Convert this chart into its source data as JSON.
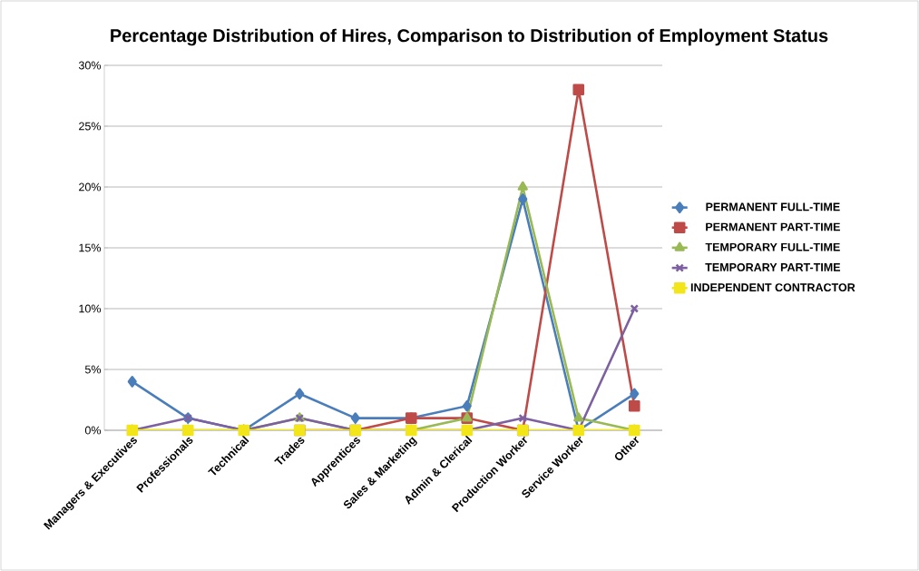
{
  "chart_data": {
    "type": "line",
    "title": "Percentage Distribution of Hires, Comparison to Distribution of Employment Status",
    "categories": [
      "Managers & Executives",
      "Professionals",
      "Technical",
      "Trades",
      "Apprentices",
      "Sales & Marketing",
      "Admin & Clerical",
      "Production Worker",
      "Service Worker",
      "Other"
    ],
    "series": [
      {
        "name": "PERMANENT FULL-TIME",
        "color": "#4a7ebb",
        "marker": "diamond",
        "values": [
          4,
          1,
          0,
          3,
          1,
          1,
          2,
          19,
          0,
          3
        ]
      },
      {
        "name": "PERMANENT PART-TIME",
        "color": "#be4b48",
        "marker": "square",
        "values": [
          null,
          null,
          null,
          0,
          0,
          1,
          1,
          0,
          28,
          2
        ]
      },
      {
        "name": "TEMPORARY FULL-TIME",
        "color": "#98b954",
        "marker": "triangle",
        "values": [
          0,
          0,
          0,
          1,
          0,
          0,
          1,
          20,
          1,
          0
        ]
      },
      {
        "name": "TEMPORARY PART-TIME",
        "color": "#7d60a0",
        "marker": "cross",
        "values": [
          0,
          1,
          0,
          1,
          0,
          0,
          0,
          1,
          0,
          10
        ]
      },
      {
        "name": "INDEPENDENT CONTRACTOR",
        "color": "#f2e61a",
        "marker": "square",
        "values": [
          0,
          0,
          0,
          0,
          0,
          0,
          0,
          0,
          0,
          0
        ]
      }
    ],
    "ylim": [
      0,
      30
    ],
    "yticks": [
      {
        "value": 0,
        "label": "0%"
      },
      {
        "value": 5,
        "label": "5%"
      },
      {
        "value": 10,
        "label": "10%"
      },
      {
        "value": 15,
        "label": "15%"
      },
      {
        "value": 20,
        "label": "20%"
      },
      {
        "value": 25,
        "label": "25%"
      },
      {
        "value": 30,
        "label": "30%"
      }
    ],
    "grid": "y",
    "legend": "right"
  }
}
